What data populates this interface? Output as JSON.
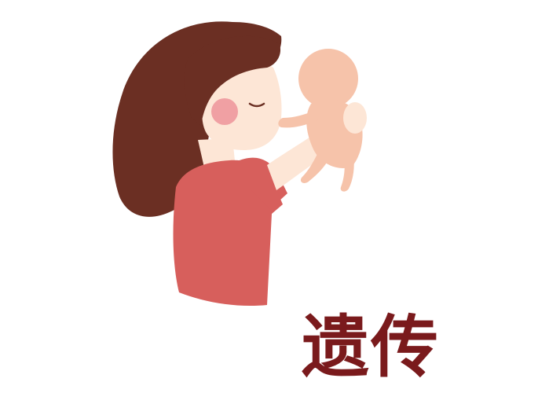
{
  "caption": {
    "text": "遗传"
  },
  "colors": {
    "hair": "#6b2f23",
    "skin": "#fde6d6",
    "cheek": "#f0a0a3",
    "shirt": "#d75f5c",
    "shirt_outline": "#b94845",
    "baby_skin": "#f6c3aa",
    "baby_shadow": "#e9ab90",
    "caption": "#7a1a1c",
    "background": "#ffffff"
  },
  "icons": [
    "mother-figure",
    "baby-figure"
  ]
}
